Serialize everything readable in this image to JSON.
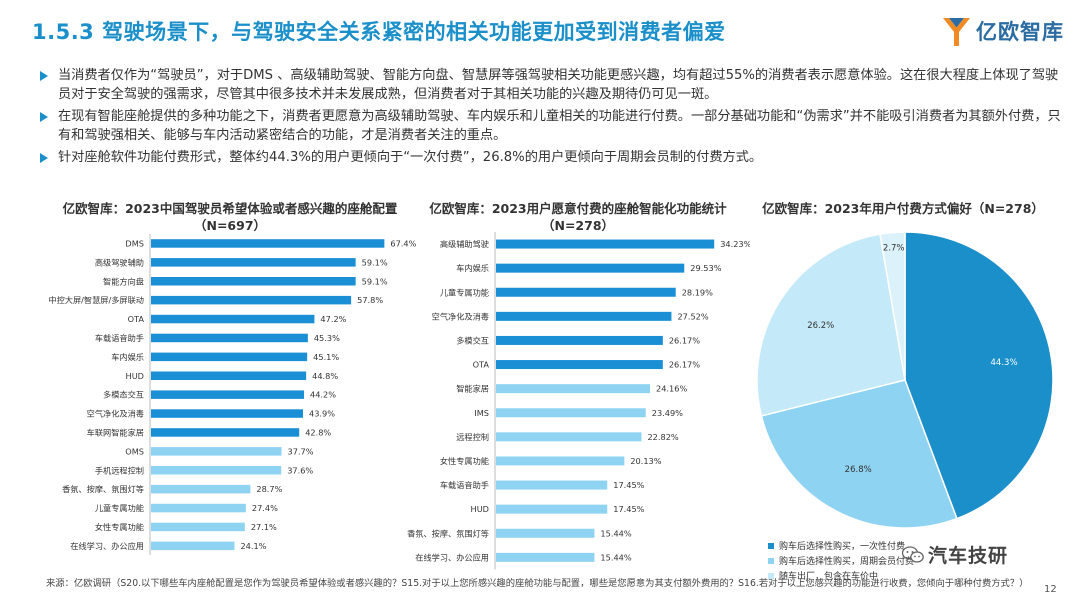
{
  "header": {
    "title": "1.5.3 驾驶场景下，与驾驶安全关系紧密的相关功能更加受到消费者偏爱"
  },
  "logo": {
    "text": "亿欧智库"
  },
  "bullets": [
    "当消费者仅作为“驾驶员”，对于DMS 、高级辅助驾驶、智能方向盘、智慧屏等强驾驶相关功能更感兴趣，均有超过55%的消费者表示愿意体验。这在很大程度上体现了驾驶员对于安全驾驶的强需求，尽管其中很多技术并未发展成熟，但消费者对于其相关功能的兴趣及期待仍可见一斑。",
    "在现有智能座舱提供的多种功能之下，消费者更愿意为高级辅助驾驶、车内娱乐和儿童相关的功能进行付费。一部分基础功能和“伪需求”并不能吸引消费者为其额外付费，只有和驾驶强相关、能够与车内活动紧密结合的功能，才是消费者关注的重点。",
    "针对座舱软件功能付费形式，整体约44.3%的用户更倾向于“一次付费”，26.8%的用户更倾向于周期会员制的付费方式。"
  ],
  "chart_data": [
    {
      "type": "bar",
      "orientation": "horizontal",
      "title": "亿欧智库：2023中国驾驶员希望体验或者感兴趣的座舱配置",
      "subtitle": "（N=697）",
      "categories": [
        "DMS",
        "高级驾驶辅助",
        "智能方向盘",
        "中控大屏/智慧屏/多屏联动",
        "OTA",
        "车载语音助手",
        "车内娱乐",
        "HUD",
        "多模态交互",
        "空气净化及消毒",
        "车联网智能家居",
        "OMS",
        "手机远程控制",
        "香氛、按摩、氛围灯等",
        "儿童专属功能",
        "女性专属功能",
        "在线学习、办公应用"
      ],
      "values": [
        67.4,
        59.1,
        59.1,
        57.8,
        47.2,
        45.3,
        45.1,
        44.8,
        44.2,
        43.9,
        42.8,
        37.7,
        37.6,
        28.7,
        27.4,
        27.1,
        24.1
      ],
      "value_labels": [
        "67.4%",
        "59.1%",
        "59.1%",
        "57.8%",
        "47.2%",
        "45.3%",
        "45.1%",
        "44.8%",
        "44.2%",
        "43.9%",
        "42.8%",
        "37.7%",
        "37.6%",
        "28.7%",
        "27.4%",
        "27.1%",
        "24.1%"
      ],
      "highlight_count": 11,
      "xlim": [
        0,
        80
      ],
      "colors": {
        "dark": "#1a8fd6",
        "light": "#8fd3f2"
      }
    },
    {
      "type": "bar",
      "orientation": "horizontal",
      "title": "亿欧智库：2023用户愿意付费的座舱智能化功能统计",
      "subtitle": "（N=278）",
      "categories": [
        "高级辅助驾驶",
        "车内娱乐",
        "儿童专属功能",
        "空气净化及消毒",
        "多模交互",
        "OTA",
        "智能家居",
        "IMS",
        "远程控制",
        "女性专属功能",
        "车载语音助手",
        "HUD",
        "香氛、按摩、氛围灯等",
        "在线学习、办公应用"
      ],
      "values": [
        34.23,
        29.53,
        28.19,
        27.52,
        26.17,
        26.17,
        24.16,
        23.49,
        22.82,
        20.13,
        17.45,
        17.45,
        15.44,
        15.44
      ],
      "value_labels": [
        "34.23%",
        "29.53%",
        "28.19%",
        "27.52%",
        "26.17%",
        "26.17%",
        "24.16%",
        "23.49%",
        "22.82%",
        "20.13%",
        "17.45%",
        "17.45%",
        "15.44%",
        "15.44%"
      ],
      "highlight_count": 6,
      "xlim": [
        0,
        40
      ],
      "colors": {
        "dark": "#1a8fd6",
        "light": "#8fd3f2"
      }
    },
    {
      "type": "pie",
      "title": "亿欧智库：2023年用户付费方式偏好（N=278）",
      "slices": [
        {
          "label": "购车后选择性购买，一次性付费",
          "value": 44.3,
          "value_label": "44.3%",
          "color": "#1a8fc9"
        },
        {
          "label": "购车后选择性购买，周期会员付费",
          "value": 26.8,
          "value_label": "26.8%",
          "color": "#8fd3f2"
        },
        {
          "label": "随车出厂，包含在车价中",
          "value": 26.2,
          "value_label": "26.2%",
          "color": "#c4e9f8"
        },
        {
          "label": "",
          "value": 2.7,
          "value_label": "2.7%",
          "color": "#dcf2fb"
        }
      ],
      "legend_position": "bottom-left"
    }
  ],
  "footer": {
    "source": "来源：亿欧调研（S20.以下哪些车内座舱配置是您作为驾驶员希望体验或者感兴趣的？S15.对于以上您所感兴趣的座舱功能与配置，哪些是您愿意为其支付额外费用的？S16.若对于以上您感兴趣的功能进行收费，您倾向于哪种付费方式？）",
    "page": "12",
    "watermark": "汽车技研"
  }
}
